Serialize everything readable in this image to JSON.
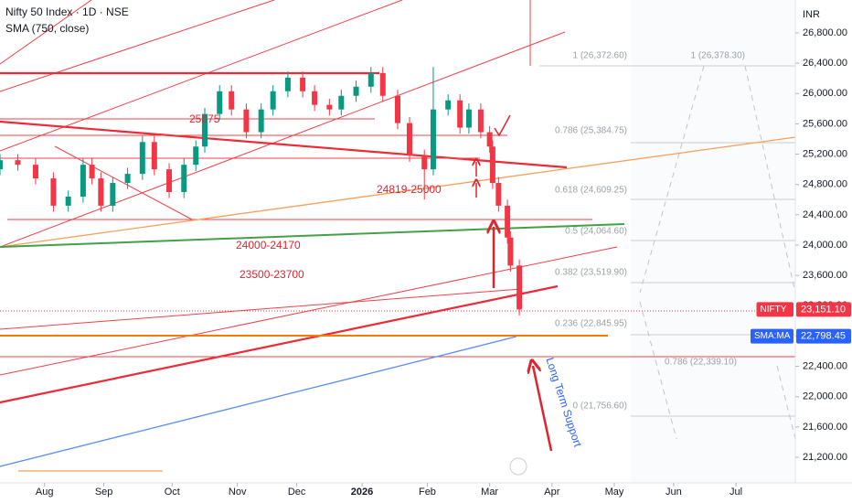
{
  "chart_data": {
    "type": "candlestick",
    "title": "Nifty 50 Index · 1D · NSE",
    "subtitle": "SMA (750, close)",
    "currency": "INR",
    "up_color": "#089981",
    "down_color": "#f23645",
    "x": [
      0,
      6,
      12,
      18,
      23,
      28,
      31,
      34,
      38,
      43,
      48,
      52,
      57,
      62,
      66,
      69,
      74,
      78,
      83,
      88,
      92,
      97,
      102,
      106,
      111,
      115,
      120,
      125,
      129,
      134,
      138,
      143,
      146,
      151,
      155,
      158,
      162,
      165,
      166,
      168,
      171,
      172,
      175
    ],
    "open": [
      25000,
      25120,
      25060,
      24880,
      24520,
      24640,
      25060,
      24880,
      24520,
      24820,
      24940,
      25360,
      25000,
      24700,
      25060,
      25300,
      25730,
      26030,
      25790,
      25490,
      25790,
      26030,
      26210,
      26030,
      25850,
      25790,
      25970,
      26090,
      26270,
      25970,
      25610,
      25180,
      25000,
      25790,
      25910,
      25550,
      25790,
      25490,
      25300,
      24820,
      24520,
      24100,
      23730
    ],
    "high": [
      25200,
      25200,
      25140,
      24960,
      24720,
      25140,
      25140,
      24960,
      24900,
      25020,
      25440,
      25440,
      25080,
      25140,
      25380,
      25810,
      26110,
      26110,
      25870,
      25870,
      26110,
      26290,
      26290,
      26110,
      25930,
      26050,
      26170,
      26350,
      26350,
      26050,
      25690,
      25260,
      26350,
      25990,
      25990,
      25870,
      25870,
      25570,
      25380,
      24900,
      24600,
      24180,
      23810
    ],
    "low": [
      24920,
      24980,
      24800,
      24440,
      24440,
      24560,
      24800,
      24440,
      24440,
      24740,
      24860,
      24920,
      24620,
      24620,
      24980,
      25220,
      25650,
      25710,
      25410,
      25410,
      25710,
      25950,
      25950,
      25770,
      25710,
      25710,
      25890,
      26010,
      25890,
      25530,
      25100,
      24600,
      24920,
      25710,
      25470,
      25470,
      25410,
      25220,
      24740,
      24440,
      24020,
      23650,
      23071
    ],
    "close": [
      25120,
      25060,
      24880,
      24520,
      24640,
      25060,
      24880,
      24520,
      24820,
      24940,
      25360,
      25000,
      24700,
      25060,
      25300,
      25730,
      26030,
      25790,
      25490,
      25790,
      26030,
      26210,
      26030,
      25850,
      25790,
      25970,
      26090,
      26270,
      25970,
      25610,
      25180,
      25000,
      25790,
      25910,
      25550,
      25790,
      25490,
      25300,
      24820,
      24520,
      24100,
      23730,
      23151
    ],
    "sma": {
      "name": "SMA",
      "color": "#5b8def",
      "x": [
        0,
        50,
        100,
        150,
        174
      ],
      "values": [
        21080,
        21572,
        22064,
        22556,
        22793
      ]
    },
    "xlim": [
      0,
      268
    ],
    "xticks": [
      {
        "value": 15,
        "label": "Aug"
      },
      {
        "value": 35,
        "label": "Sep"
      },
      {
        "value": 58,
        "label": "Oct"
      },
      {
        "value": 80,
        "label": "Nov"
      },
      {
        "value": 100,
        "label": "Dec"
      },
      {
        "value": 122,
        "label": "2026"
      },
      {
        "value": 144,
        "label": "Feb"
      },
      {
        "value": 165,
        "label": "Mar"
      },
      {
        "value": 186,
        "label": "Apr"
      },
      {
        "value": 207,
        "label": "May"
      },
      {
        "value": 227,
        "label": "Jun"
      },
      {
        "value": 248,
        "label": "Jul"
      }
    ],
    "ylim": [
      20597,
      27234
    ],
    "yticks": [
      {
        "value": 21200,
        "label": "21,200.00"
      },
      {
        "value": 21600,
        "label": "21,600.00"
      },
      {
        "value": 22000,
        "label": "22,000.00"
      },
      {
        "value": 22400,
        "label": "22,400.00"
      },
      {
        "value": 22800,
        "label": "22,800.00"
      },
      {
        "value": 23200,
        "label": "23,200.00"
      },
      {
        "value": 23600,
        "label": "23,600.00"
      },
      {
        "value": 24000,
        "label": "24,000.00"
      },
      {
        "value": 24400,
        "label": "24,400.00"
      },
      {
        "value": 24800,
        "label": "24,800.00"
      },
      {
        "value": 25200,
        "label": "25,200.00"
      },
      {
        "value": 25600,
        "label": "25,600.00"
      },
      {
        "value": 26000,
        "label": "26,000.00"
      },
      {
        "value": 26400,
        "label": "26,400.00"
      },
      {
        "value": 26800,
        "label": "26,800.00"
      }
    ],
    "price_tags": [
      {
        "name": "NIFTY",
        "value": 23151.1,
        "label": "23,151.10",
        "color": "#f23645"
      },
      {
        "name": "SMA:MA",
        "value": 22798.45,
        "label": "22,798.45",
        "color": "#2962ff"
      }
    ],
    "annotations": [
      "25675",
      "24819-25000",
      "24000-24170",
      "23500-23700",
      "Long Term Support"
    ],
    "fib_labels": [
      "1 (26,372.60)",
      "0.786 (25,384.75)",
      "0.618 (24,609.25)",
      "0.5 (24,064.60)",
      "0.382 (23,519.90)",
      "0.236 (22,845.95)",
      "0 (21,756.60)",
      "1 (26,378.30)",
      "0.786 (22,339.10)"
    ]
  }
}
